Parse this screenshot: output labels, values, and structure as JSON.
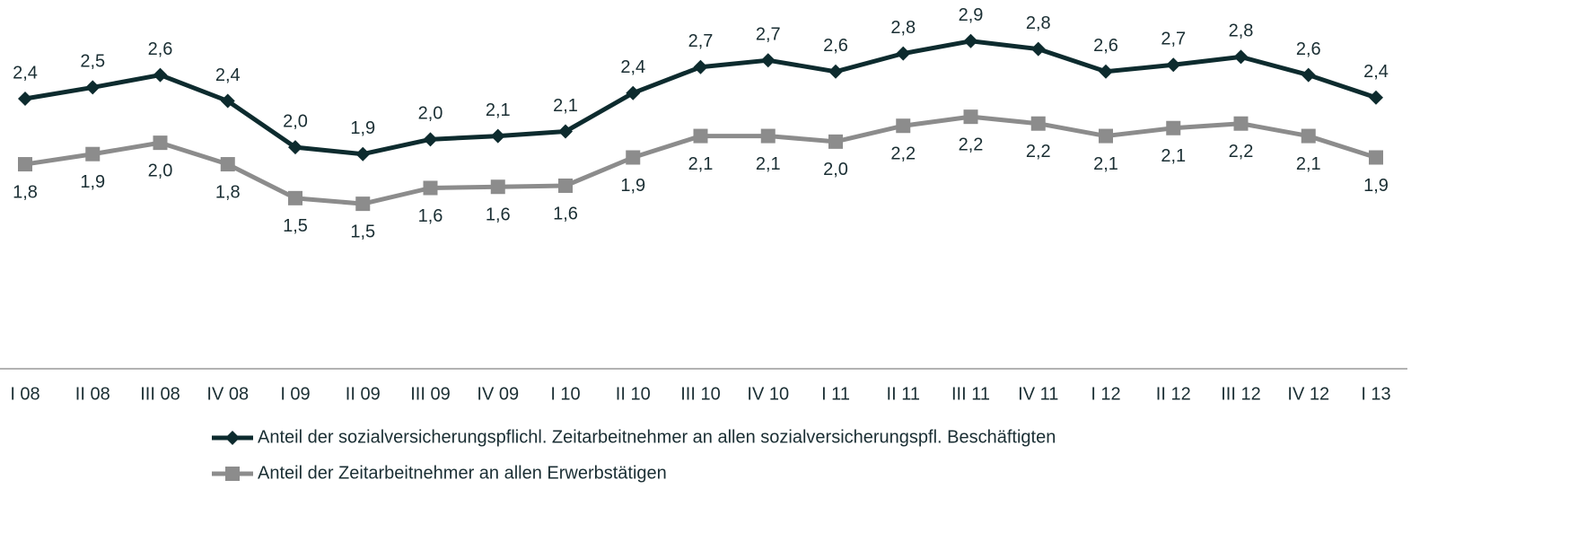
{
  "chart_data": {
    "type": "line",
    "categories": [
      "I 08",
      "II 08",
      "III 08",
      "IV 08",
      "I 09",
      "II 09",
      "III 09",
      "IV 09",
      "I 10",
      "II 10",
      "III 10",
      "IV 10",
      "I 11",
      "II 11",
      "III 11",
      "IV 11",
      "I 12",
      "II 12",
      "III 12",
      "IV 12",
      "I 13"
    ],
    "series": [
      {
        "name": "Anteil der sozialversicherungspflichl. Zeitarbeitnehmer an allen sozialversicherungspfl. Beschäftigten",
        "color": "#0d2b2e",
        "marker": "diamond",
        "values": [
          2.39,
          2.49,
          2.6,
          2.37,
          1.96,
          1.9,
          2.03,
          2.06,
          2.1,
          2.44,
          2.67,
          2.73,
          2.63,
          2.79,
          2.9,
          2.83,
          2.63,
          2.69,
          2.76,
          2.6,
          2.4
        ],
        "value_labels": [
          "2,4",
          "2,5",
          "2,6",
          "2,4",
          "2,0",
          "1,9",
          "2,0",
          "2,1",
          "2,1",
          "2,4",
          "2,7",
          "2,7",
          "2,6",
          "2,8",
          "2,9",
          "2,8",
          "2,6",
          "2,7",
          "2,8",
          "2,6",
          "2,4"
        ]
      },
      {
        "name": "Anteil der Zeitarbeitnehmer an allen Erwerbstätigen",
        "color": "#8c8c8c",
        "marker": "square",
        "values": [
          1.81,
          1.9,
          2.0,
          1.81,
          1.51,
          1.46,
          1.6,
          1.61,
          1.62,
          1.87,
          2.06,
          2.06,
          2.01,
          2.15,
          2.23,
          2.17,
          2.06,
          2.13,
          2.17,
          2.06,
          1.87
        ],
        "value_labels": [
          "1,8",
          "1,9",
          "2,0",
          "1,8",
          "1,5",
          "1,5",
          "1,6",
          "1,6",
          "1,6",
          "1,9",
          "2,1",
          "2,1",
          "2,0",
          "2,2",
          "2,2",
          "2,2",
          "2,1",
          "2,1",
          "2,2",
          "2,1",
          "1,9"
        ]
      }
    ],
    "ylim": [
      0,
      3.2
    ]
  }
}
